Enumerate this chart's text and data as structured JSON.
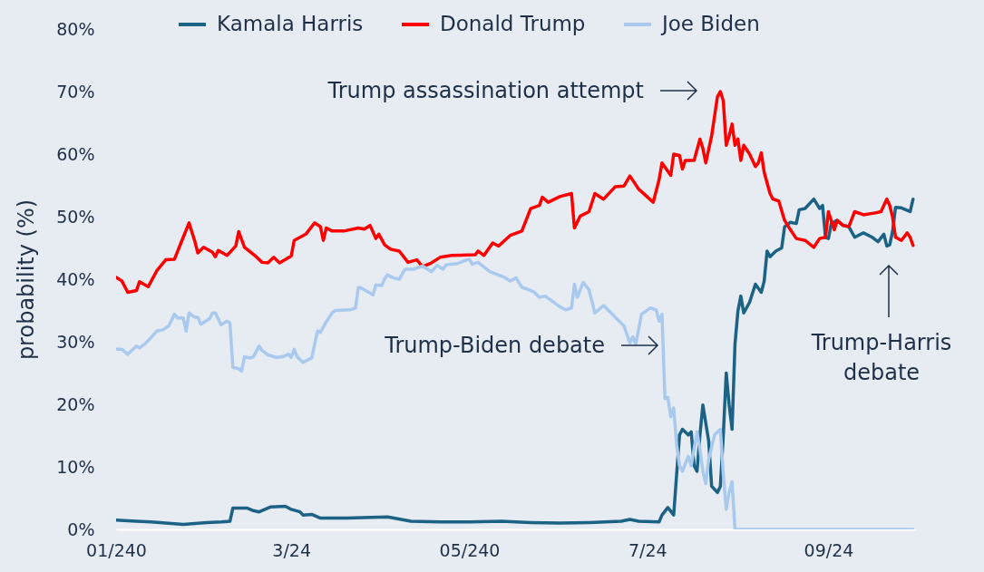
{
  "chart_data": {
    "type": "line",
    "ylabel": "probability (%)",
    "legend": "top",
    "grid": false,
    "xlim": [
      "2024-01-01",
      "2024-10-01"
    ],
    "xticks": [
      {
        "value": "2024-01-01",
        "label": "01/240"
      },
      {
        "value": "2024-03-01",
        "label": "3/24"
      },
      {
        "value": "2024-05-01",
        "label": "05/240"
      },
      {
        "value": "2024-07-01",
        "label": "7/24"
      },
      {
        "value": "2024-09-01",
        "label": "09/24"
      }
    ],
    "ylim": [
      0,
      80
    ],
    "yticks": [
      {
        "value": 0,
        "label": "0%"
      },
      {
        "value": 10,
        "label": "10%"
      },
      {
        "value": 20,
        "label": "20%"
      },
      {
        "value": 30,
        "label": "30%"
      },
      {
        "value": 40,
        "label": "40%"
      },
      {
        "value": 50,
        "label": "50%"
      },
      {
        "value": 60,
        "label": "60%"
      },
      {
        "value": 70,
        "label": "70%"
      },
      {
        "value": 80,
        "label": "80%"
      }
    ],
    "series": [
      {
        "name": "Kamala Harris",
        "color": "#1b6284",
        "x": [
          "2024-01-01",
          "2024-01-08",
          "2024-01-13",
          "2024-01-18",
          "2024-01-24",
          "2024-02-01",
          "2024-02-06",
          "2024-02-09",
          "2024-02-10",
          "2024-02-15",
          "2024-02-17",
          "2024-02-19",
          "2024-02-23",
          "2024-02-28",
          "2024-03-01",
          "2024-03-04",
          "2024-03-05",
          "2024-03-08",
          "2024-03-11",
          "2024-03-20",
          "2024-04-03",
          "2024-04-11",
          "2024-04-21",
          "2024-05-01",
          "2024-05-12",
          "2024-05-22",
          "2024-06-01",
          "2024-06-11",
          "2024-06-22",
          "2024-06-25",
          "2024-06-28",
          "2024-07-05",
          "2024-07-06",
          "2024-07-08",
          "2024-07-10",
          "2024-07-12",
          "2024-07-13",
          "2024-07-15",
          "2024-07-16",
          "2024-07-17",
          "2024-07-18",
          "2024-07-19",
          "2024-07-20",
          "2024-07-22",
          "2024-07-23",
          "2024-07-25",
          "2024-07-26",
          "2024-07-27",
          "2024-07-28",
          "2024-07-29",
          "2024-07-30",
          "2024-07-31",
          "2024-08-01",
          "2024-08-02",
          "2024-08-03",
          "2024-08-05",
          "2024-08-07",
          "2024-08-09",
          "2024-08-10",
          "2024-08-11",
          "2024-08-12",
          "2024-08-14",
          "2024-08-16",
          "2024-08-17",
          "2024-08-19",
          "2024-08-21",
          "2024-08-22",
          "2024-08-24",
          "2024-08-27",
          "2024-08-29",
          "2024-08-30",
          "2024-08-31",
          "2024-09-01",
          "2024-09-02",
          "2024-09-04",
          "2024-09-06",
          "2024-09-08",
          "2024-09-10",
          "2024-09-13",
          "2024-09-16",
          "2024-09-18",
          "2024-09-20",
          "2024-09-21",
          "2024-09-22",
          "2024-09-23",
          "2024-09-24",
          "2024-09-26",
          "2024-09-29",
          "2024-09-30"
        ],
        "values": [
          1.5,
          1.3,
          1.2,
          1.0,
          0.8,
          1.1,
          1.2,
          1.3,
          3.4,
          3.4,
          3.0,
          2.8,
          3.6,
          3.7,
          3.2,
          2.8,
          2.3,
          2.4,
          1.8,
          1.8,
          2.0,
          1.3,
          1.2,
          1.2,
          1.3,
          1.1,
          1.0,
          1.1,
          1.3,
          1.6,
          1.3,
          1.2,
          2.3,
          3.5,
          2.3,
          15.1,
          16.0,
          15.1,
          15.6,
          10.2,
          9.3,
          15.1,
          19.9,
          14.1,
          6.9,
          5.9,
          6.9,
          15.1,
          25.0,
          19.9,
          16.0,
          29.6,
          34.9,
          37.3,
          34.6,
          36.3,
          39.2,
          37.9,
          39.7,
          44.5,
          43.6,
          44.5,
          45.0,
          48.4,
          49.1,
          48.9,
          51.1,
          51.3,
          52.8,
          51.3,
          51.8,
          46.7,
          46.5,
          48.9,
          49.4,
          48.6,
          48.4,
          46.7,
          47.4,
          46.7,
          46.0,
          47.2,
          45.3,
          45.5,
          47.7,
          51.5,
          51.4,
          50.8,
          52.8
        ]
      },
      {
        "name": "Donald Trump",
        "color": "#ff0000",
        "x": [
          "2024-01-01",
          "2024-01-03",
          "2024-01-05",
          "2024-01-08",
          "2024-01-09",
          "2024-01-12",
          "2024-01-15",
          "2024-01-18",
          "2024-01-21",
          "2024-01-24",
          "2024-01-26",
          "2024-01-28",
          "2024-01-29",
          "2024-01-31",
          "2024-02-03",
          "2024-02-04",
          "2024-02-05",
          "2024-02-08",
          "2024-02-11",
          "2024-02-12",
          "2024-02-14",
          "2024-02-18",
          "2024-02-20",
          "2024-02-22",
          "2024-02-24",
          "2024-02-26",
          "2024-03-01",
          "2024-03-02",
          "2024-03-06",
          "2024-03-09",
          "2024-03-11",
          "2024-03-12",
          "2024-03-13",
          "2024-03-15",
          "2024-03-19",
          "2024-03-24",
          "2024-03-26",
          "2024-03-28",
          "2024-03-30",
          "2024-03-31",
          "2024-04-02",
          "2024-04-04",
          "2024-04-07",
          "2024-04-10",
          "2024-04-13",
          "2024-04-15",
          "2024-04-18",
          "2024-04-21",
          "2024-04-25",
          "2024-05-03",
          "2024-05-04",
          "2024-05-06",
          "2024-05-09",
          "2024-05-11",
          "2024-05-15",
          "2024-05-19",
          "2024-05-22",
          "2024-05-25",
          "2024-05-26",
          "2024-05-28",
          "2024-06-01",
          "2024-06-05",
          "2024-06-06",
          "2024-06-08",
          "2024-06-11",
          "2024-06-13",
          "2024-06-16",
          "2024-06-20",
          "2024-06-23",
          "2024-06-25",
          "2024-06-28",
          "2024-07-03",
          "2024-07-05",
          "2024-07-06",
          "2024-07-09",
          "2024-07-10",
          "2024-07-12",
          "2024-07-13",
          "2024-07-14",
          "2024-07-17",
          "2024-07-19",
          "2024-07-20",
          "2024-07-21",
          "2024-07-23",
          "2024-07-25",
          "2024-07-26",
          "2024-07-27",
          "2024-07-28",
          "2024-07-29",
          "2024-07-30",
          "2024-07-31",
          "2024-08-01",
          "2024-08-02",
          "2024-08-03",
          "2024-08-05",
          "2024-08-07",
          "2024-08-08",
          "2024-08-09",
          "2024-08-10",
          "2024-08-12",
          "2024-08-13",
          "2024-08-15",
          "2024-08-17",
          "2024-08-19",
          "2024-08-21",
          "2024-08-24",
          "2024-08-27",
          "2024-08-29",
          "2024-08-31",
          "2024-09-01",
          "2024-09-03",
          "2024-09-04",
          "2024-09-06",
          "2024-09-08",
          "2024-09-10",
          "2024-09-13",
          "2024-09-17",
          "2024-09-19",
          "2024-09-21",
          "2024-09-22",
          "2024-09-23",
          "2024-09-24",
          "2024-09-26",
          "2024-09-28",
          "2024-09-29",
          "2024-09-30"
        ],
        "values": [
          40.3,
          39.7,
          37.9,
          38.2,
          39.6,
          38.8,
          41.4,
          43.1,
          43.2,
          46.7,
          49.0,
          46.0,
          44.2,
          45.1,
          44.3,
          43.6,
          44.6,
          43.8,
          45.3,
          47.6,
          45.1,
          43.6,
          42.7,
          42.6,
          43.5,
          42.6,
          43.7,
          46.2,
          47.2,
          49.0,
          48.4,
          46.2,
          48.2,
          47.7,
          47.7,
          48.2,
          48.0,
          48.6,
          46.5,
          47.2,
          45.5,
          44.8,
          44.5,
          42.7,
          43.1,
          42.0,
          42.6,
          43.5,
          43.8,
          43.9,
          44.5,
          43.8,
          45.8,
          45.3,
          47.0,
          47.7,
          51.3,
          51.8,
          53.1,
          52.3,
          53.2,
          53.7,
          48.2,
          50.1,
          50.8,
          53.7,
          52.8,
          54.8,
          54.9,
          56.5,
          54.4,
          52.3,
          55.9,
          58.6,
          56.6,
          60.0,
          59.8,
          57.6,
          59.0,
          59.0,
          62.4,
          60.9,
          58.6,
          62.9,
          69.2,
          70.0,
          68.5,
          61.4,
          62.9,
          64.8,
          61.4,
          62.4,
          59.0,
          61.4,
          60.0,
          58.0,
          58.6,
          60.2,
          57.1,
          53.7,
          52.8,
          52.5,
          49.4,
          47.9,
          46.5,
          46.2,
          45.1,
          46.5,
          46.7,
          50.8,
          47.9,
          49.4,
          48.6,
          48.4,
          50.8,
          50.3,
          50.6,
          50.8,
          52.8,
          51.8,
          49.9,
          46.7,
          46.2,
          47.4,
          46.7,
          45.4
        ]
      },
      {
        "name": "Joe Biden",
        "color": "#a9caee",
        "x": [
          "2024-01-01",
          "2024-01-03",
          "2024-01-05",
          "2024-01-08",
          "2024-01-09",
          "2024-01-11",
          "2024-01-15",
          "2024-01-17",
          "2024-01-19",
          "2024-01-21",
          "2024-01-22",
          "2024-01-24",
          "2024-01-25",
          "2024-01-26",
          "2024-01-28",
          "2024-01-29",
          "2024-01-30",
          "2024-02-02",
          "2024-02-03",
          "2024-02-04",
          "2024-02-06",
          "2024-02-08",
          "2024-02-09",
          "2024-02-10",
          "2024-02-12",
          "2024-02-13",
          "2024-02-14",
          "2024-02-16",
          "2024-02-17",
          "2024-02-19",
          "2024-02-20",
          "2024-02-22",
          "2024-02-25",
          "2024-02-27",
          "2024-02-29",
          "2024-03-01",
          "2024-03-02",
          "2024-03-03",
          "2024-03-05",
          "2024-03-08",
          "2024-03-10",
          "2024-03-11",
          "2024-03-13",
          "2024-03-15",
          "2024-03-16",
          "2024-03-21",
          "2024-03-23",
          "2024-03-24",
          "2024-03-25",
          "2024-03-29",
          "2024-03-30",
          "2024-04-01",
          "2024-04-02",
          "2024-04-03",
          "2024-04-05",
          "2024-04-07",
          "2024-04-09",
          "2024-04-12",
          "2024-04-15",
          "2024-04-18",
          "2024-04-20",
          "2024-04-22",
          "2024-04-23",
          "2024-04-27",
          "2024-04-29",
          "2024-05-01",
          "2024-05-02",
          "2024-05-04",
          "2024-05-08",
          "2024-05-13",
          "2024-05-15",
          "2024-05-17",
          "2024-05-19",
          "2024-05-21",
          "2024-05-23",
          "2024-05-25",
          "2024-05-27",
          "2024-06-01",
          "2024-06-03",
          "2024-06-05",
          "2024-06-06",
          "2024-06-07",
          "2024-06-09",
          "2024-06-11",
          "2024-06-13",
          "2024-06-16",
          "2024-06-20",
          "2024-06-23",
          "2024-06-25",
          "2024-06-26",
          "2024-06-27",
          "2024-06-29",
          "2024-07-02",
          "2024-07-04",
          "2024-07-05",
          "2024-07-06",
          "2024-07-07",
          "2024-07-08",
          "2024-07-09",
          "2024-07-10",
          "2024-07-11",
          "2024-07-12",
          "2024-07-13",
          "2024-07-15",
          "2024-07-16",
          "2024-07-18",
          "2024-07-19",
          "2024-07-20",
          "2024-07-21",
          "2024-07-22",
          "2024-07-24",
          "2024-07-26",
          "2024-07-27",
          "2024-07-28",
          "2024-07-29",
          "2024-07-30",
          "2024-07-31",
          "2024-08-15",
          "2024-09-01",
          "2024-09-15",
          "2024-09-30"
        ],
        "values": [
          28.8,
          28.8,
          28.0,
          29.3,
          29.0,
          29.7,
          31.7,
          31.9,
          32.5,
          34.4,
          33.8,
          33.8,
          31.7,
          34.6,
          33.9,
          33.9,
          32.8,
          33.7,
          34.6,
          34.6,
          32.7,
          33.3,
          33.0,
          25.9,
          25.7,
          25.3,
          27.6,
          27.4,
          27.6,
          29.3,
          28.6,
          27.9,
          27.5,
          27.6,
          28.0,
          27.5,
          28.8,
          27.6,
          26.7,
          27.4,
          31.7,
          31.5,
          33.2,
          34.6,
          35.0,
          35.1,
          35.4,
          38.7,
          38.6,
          37.5,
          39.1,
          39.0,
          40.1,
          40.7,
          40.2,
          40.0,
          41.6,
          41.6,
          42.1,
          41.2,
          42.2,
          41.6,
          42.3,
          42.5,
          42.9,
          43.2,
          42.4,
          42.7,
          41.2,
          40.3,
          39.7,
          40.2,
          38.7,
          38.4,
          38.0,
          37.1,
          37.3,
          35.6,
          35.1,
          35.4,
          39.2,
          37.1,
          39.5,
          38.3,
          34.6,
          35.8,
          33.9,
          32.5,
          29.8,
          30.8,
          29.6,
          34.4,
          35.4,
          35.1,
          33.3,
          34.4,
          20.9,
          21.1,
          18.0,
          19.4,
          13.6,
          10.2,
          9.3,
          11.7,
          10.2,
          15.6,
          12.7,
          9.3,
          7.3,
          11.2,
          15.1,
          16.0,
          8.8,
          3.2,
          5.9,
          7.6,
          0,
          0,
          0,
          0,
          0
        ]
      }
    ],
    "annotations": [
      "Trump assassination attempt",
      "Trump-Biden debate",
      "Trump-Harris debate"
    ]
  }
}
